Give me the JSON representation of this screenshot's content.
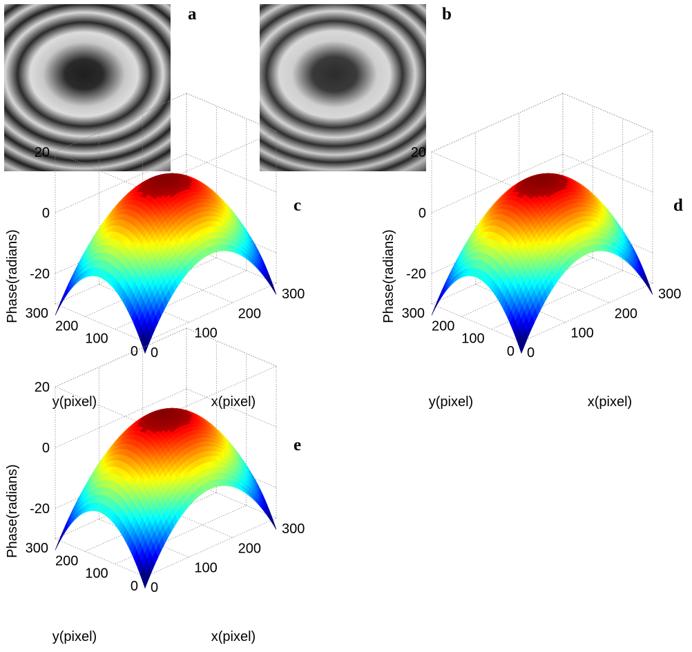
{
  "panels": {
    "a": "a",
    "b": "b",
    "c": "c",
    "d": "d",
    "e": "e"
  },
  "fringe_images": [
    {
      "panel": "a",
      "type": "fringe-pattern",
      "colormap": "gray",
      "ring_count": 5
    },
    {
      "panel": "b",
      "type": "fringe-pattern",
      "colormap": "gray",
      "ring_count": 5
    }
  ],
  "chart_data": [
    {
      "panel": "c",
      "type": "surface",
      "colormap": "jet",
      "xlabel": "x(pixel)",
      "ylabel": "y(pixel)",
      "zlabel": "Phase(radians)",
      "x_ticks": [
        "0",
        "100",
        "200",
        "300"
      ],
      "y_ticks": [
        "0",
        "100",
        "200",
        "300"
      ],
      "z_ticks": [
        "-20",
        "0",
        "20"
      ],
      "xlim": [
        0,
        300
      ],
      "ylim": [
        0,
        300
      ],
      "zlim": [
        -30,
        20
      ],
      "grid": true,
      "peak_phase": 8,
      "edge_min_phase": -28
    },
    {
      "panel": "d",
      "type": "surface",
      "colormap": "jet",
      "xlabel": "x(pixel)",
      "ylabel": "y(pixel)",
      "zlabel": "Phase(radians)",
      "x_ticks": [
        "0",
        "100",
        "200",
        "300"
      ],
      "y_ticks": [
        "0",
        "100",
        "200",
        "300"
      ],
      "z_ticks": [
        "-20",
        "0",
        "20"
      ],
      "xlim": [
        0,
        300
      ],
      "ylim": [
        0,
        300
      ],
      "zlim": [
        -30,
        20
      ],
      "grid": true,
      "peak_phase": 8,
      "edge_min_phase": -28
    },
    {
      "panel": "e",
      "type": "surface",
      "colormap": "jet",
      "xlabel": "x(pixel)",
      "ylabel": "y(pixel)",
      "zlabel": "Phase(radians)",
      "x_ticks": [
        "0",
        "100",
        "200",
        "300"
      ],
      "y_ticks": [
        "0",
        "100",
        "200",
        "300"
      ],
      "z_ticks": [
        "-20",
        "0",
        "20"
      ],
      "xlim": [
        0,
        300
      ],
      "ylim": [
        0,
        300
      ],
      "zlim": [
        -30,
        20
      ],
      "grid": true,
      "peak_phase": 8,
      "edge_min_phase": -28
    }
  ]
}
